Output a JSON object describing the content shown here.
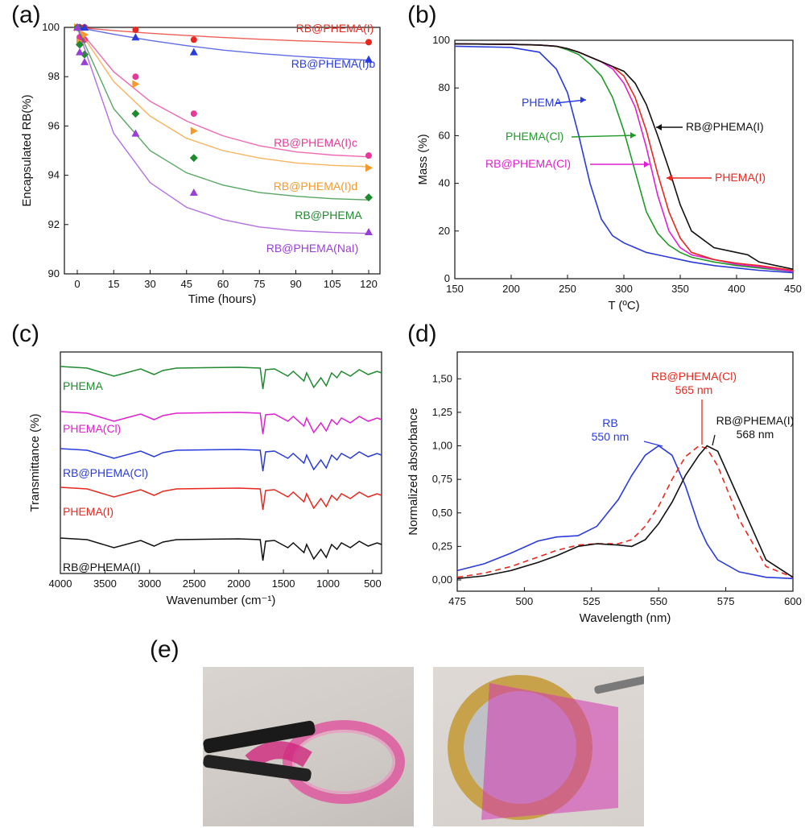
{
  "panel_labels": {
    "a": "(a)",
    "b": "(b)",
    "c": "(c)",
    "d": "(d)",
    "e": "(e)"
  },
  "chart_data": [
    {
      "id": "a",
      "type": "scatter",
      "xlabel": "Time (hours)",
      "ylabel": "Encapsulated RB(%)",
      "xlim": [
        0,
        120
      ],
      "ylim": [
        90,
        100
      ],
      "xticks": [
        0,
        15,
        30,
        45,
        60,
        75,
        90,
        105,
        120
      ],
      "yticks": [
        90,
        92,
        94,
        96,
        98,
        100
      ],
      "grid": false,
      "series": [
        {
          "name": "RB@PHEMA(I)",
          "color": "#e8281e",
          "marker": "circle",
          "x": [
            0,
            1,
            3,
            24,
            48,
            120
          ],
          "y": [
            100,
            100,
            100,
            99.9,
            99.5,
            99.4
          ],
          "fit": [
            100,
            99.87,
            99.76,
            99.67,
            99.59,
            99.52,
            99.46,
            99.41,
            99.36
          ]
        },
        {
          "name": "RB@PHEMA(I)b",
          "color": "#2a3bdc",
          "marker": "triangle",
          "x": [
            0,
            1,
            3,
            24,
            48,
            120
          ],
          "y": [
            100,
            100,
            100,
            99.6,
            99.0,
            98.7
          ],
          "fit": [
            100,
            99.72,
            99.47,
            99.26,
            99.08,
            98.94,
            98.83,
            98.74,
            98.67
          ]
        },
        {
          "name": "RB@PHEMA(I)c",
          "color": "#e8389a",
          "marker": "circle",
          "x": [
            0,
            1,
            3,
            24,
            48,
            120
          ],
          "y": [
            100,
            99.6,
            99.5,
            98.0,
            96.5,
            94.8
          ],
          "fit": [
            100,
            98.2,
            97.0,
            96.2,
            95.6,
            95.2,
            94.95,
            94.82,
            94.75
          ]
        },
        {
          "name": "RB@PHEMA(I)d",
          "color": "#f59a2a",
          "marker": "triangle-right",
          "x": [
            0,
            1,
            3,
            24,
            48,
            120
          ],
          "y": [
            100,
            99.4,
            99.7,
            97.7,
            95.8,
            94.3
          ],
          "fit": [
            100,
            97.8,
            96.4,
            95.5,
            95.0,
            94.7,
            94.5,
            94.4,
            94.35
          ]
        },
        {
          "name": "RB@PHEMA",
          "color": "#1f8a2e",
          "marker": "diamond",
          "x": [
            0,
            1,
            3,
            24,
            48,
            120
          ],
          "y": [
            100,
            99.3,
            98.9,
            96.5,
            94.7,
            93.1
          ],
          "fit": [
            100,
            96.7,
            95.0,
            94.1,
            93.6,
            93.3,
            93.15,
            93.05,
            93.0
          ]
        },
        {
          "name": "RB@PHEMA(NaI)",
          "color": "#9a3fd6",
          "marker": "triangle",
          "x": [
            0,
            1,
            3,
            24,
            48,
            120
          ],
          "y": [
            100,
            99.0,
            98.6,
            95.7,
            93.3,
            91.7
          ],
          "fit": [
            100,
            95.7,
            93.7,
            92.7,
            92.2,
            91.9,
            91.75,
            91.68,
            91.64
          ]
        }
      ]
    },
    {
      "id": "b",
      "type": "line",
      "xlabel": "T (ºC)",
      "ylabel": "Mass (%)",
      "xlim": [
        150,
        450
      ],
      "ylim": [
        0,
        100
      ],
      "xticks": [
        150,
        200,
        250,
        300,
        350,
        400,
        450
      ],
      "yticks": [
        0,
        20,
        40,
        60,
        80,
        100
      ],
      "grid": false,
      "x": [
        150,
        200,
        225,
        240,
        250,
        260,
        270,
        280,
        290,
        300,
        310,
        320,
        330,
        340,
        350,
        360,
        380,
        400,
        410,
        420,
        450
      ],
      "series": [
        {
          "name": "PHEMA",
          "color": "#2a3bdc",
          "y": [
            97.5,
            97,
            95,
            88,
            78,
            60,
            40,
            25,
            18,
            15,
            13,
            11,
            10,
            9,
            8,
            7,
            5.5,
            4.5,
            4,
            3.5,
            2.5
          ]
        },
        {
          "name": "PHEMA(Cl)",
          "color": "#1f9a2a",
          "y": [
            98.5,
            98.3,
            98,
            97.5,
            96,
            94,
            90,
            85,
            76,
            62,
            45,
            28,
            19,
            14,
            11,
            9,
            7,
            5.5,
            5,
            4.5,
            3
          ]
        },
        {
          "name": "RB@PHEMA(Cl)",
          "color": "#e020d0",
          "y": [
            98.5,
            98.3,
            98,
            97.5,
            96.5,
            95,
            93,
            91,
            88,
            82,
            72,
            55,
            35,
            20,
            13,
            10,
            8,
            6,
            5.5,
            5,
            3
          ]
        },
        {
          "name": "PHEMA(I)",
          "color": "#e8281e",
          "y": [
            98.5,
            98.3,
            98,
            97.5,
            96.5,
            95,
            93,
            91,
            89,
            85,
            76,
            62,
            44,
            28,
            17,
            11,
            8,
            6.5,
            6,
            5.5,
            3.5
          ]
        },
        {
          "name": "RB@PHEMA(I)",
          "color": "#111111",
          "y": [
            98.5,
            98.3,
            98,
            97.5,
            96.5,
            95,
            93,
            91,
            89,
            87,
            82,
            73,
            60,
            46,
            31,
            20,
            13,
            11,
            10,
            7,
            4
          ]
        }
      ],
      "annotations": [
        "PHEMA",
        "PHEMA(Cl)",
        "RB@PHEMA(Cl)",
        "RB@PHEMA(I)",
        "PHEMA(I)"
      ]
    },
    {
      "id": "c",
      "type": "line",
      "xlabel": "Wavenumber (cm⁻¹)",
      "ylabel": "Transmittance (%)",
      "xlim": [
        4000,
        400
      ],
      "xticks": [
        4000,
        3500,
        3000,
        2500,
        2000,
        1500,
        1000,
        500
      ],
      "series": [
        {
          "name": "PHEMA",
          "color": "#1f8a2e"
        },
        {
          "name": "PHEMA(Cl)",
          "color": "#e020d0"
        },
        {
          "name": "RB@PHEMA(Cl)",
          "color": "#2a3bdc"
        },
        {
          "name": "PHEMA(I)",
          "color": "#e8281e"
        },
        {
          "name": "RB@PHEMA(I)",
          "color": "#111111"
        }
      ]
    },
    {
      "id": "d",
      "type": "line",
      "xlabel": "Wavelength (nm)",
      "ylabel": "Normalized absorbance",
      "xlim": [
        475,
        600
      ],
      "ylim": [
        0,
        1.7
      ],
      "xticks": [
        475,
        500,
        525,
        550,
        575,
        600
      ],
      "yticks": [
        "0,00",
        "0,25",
        "0,50",
        "0,75",
        "1,00",
        "1,25",
        "1,50"
      ],
      "x": [
        475,
        485,
        495,
        505,
        512,
        520,
        527,
        535,
        540,
        545,
        550,
        555,
        560,
        565,
        568,
        572,
        580,
        590,
        600
      ],
      "series": [
        {
          "name": "RB",
          "color": "#2a3bdc",
          "dash": false,
          "y": [
            0.07,
            0.12,
            0.2,
            0.29,
            0.32,
            0.33,
            0.4,
            0.6,
            0.78,
            0.93,
            1.0,
            0.93,
            0.7,
            0.4,
            0.27,
            0.15,
            0.06,
            0.02,
            0.01
          ]
        },
        {
          "name": "RB@PHEMA(Cl)",
          "color": "#e8281e",
          "dash": true,
          "y": [
            0.02,
            0.05,
            0.1,
            0.17,
            0.22,
            0.26,
            0.27,
            0.27,
            0.3,
            0.4,
            0.55,
            0.75,
            0.92,
            1.0,
            0.98,
            0.85,
            0.45,
            0.1,
            0.02
          ]
        },
        {
          "name": "RB@PHEMA(I)",
          "color": "#111111",
          "dash": false,
          "y": [
            0.01,
            0.03,
            0.07,
            0.13,
            0.18,
            0.25,
            0.27,
            0.26,
            0.25,
            0.3,
            0.42,
            0.58,
            0.78,
            0.93,
            1.0,
            0.96,
            0.6,
            0.15,
            0.02
          ]
        }
      ],
      "annotations": [
        {
          "text": "RB",
          "sub": "550 nm",
          "color": "#2a3bdc"
        },
        {
          "text": "RB@PHEMA(Cl)",
          "sub": "565 nm",
          "color": "#e8281e"
        },
        {
          "text": "RB@PHEMA(I)",
          "sub": "568 nm",
          "color": "#111111"
        }
      ]
    }
  ]
}
